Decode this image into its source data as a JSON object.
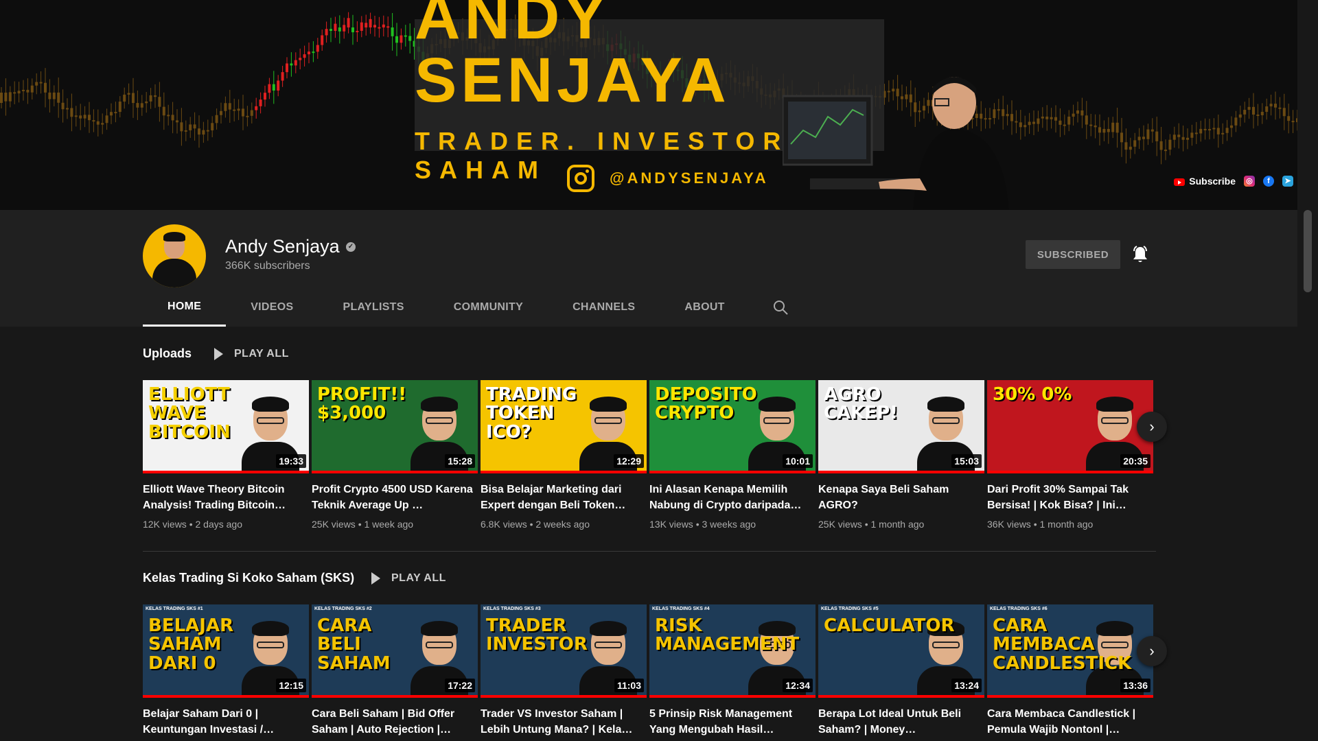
{
  "banner": {
    "title": "ANDY SENJAYA",
    "tagline": "TRADER. INVESTOR. SAHAM",
    "instagram_handle": "@ANDYSENJAYA",
    "subscribe_link": "Subscribe",
    "social_icons": [
      "instagram-icon",
      "facebook-icon",
      "telegram-icon"
    ],
    "accent_color": "#f5b800"
  },
  "channel": {
    "name": "Andy Senjaya",
    "subscribers": "366K subscribers",
    "subscribe_button": "SUBSCRIBED"
  },
  "tabs": [
    {
      "label": "HOME",
      "active": true
    },
    {
      "label": "VIDEOS",
      "active": false
    },
    {
      "label": "PLAYLISTS",
      "active": false
    },
    {
      "label": "COMMUNITY",
      "active": false
    },
    {
      "label": "CHANNELS",
      "active": false
    },
    {
      "label": "ABOUT",
      "active": false
    }
  ],
  "uploads": {
    "title": "Uploads",
    "play_all": "PLAY ALL",
    "videos": [
      {
        "title": "Elliott Wave Theory Bitcoin Analysis! Trading Bitcoin…",
        "meta": "12K views • 2 days ago",
        "duration": "19:33",
        "thumb_text": "ELLIOTT WAVE BITCOIN",
        "bg": "#f2f2f2",
        "fg": "#f5d000"
      },
      {
        "title": "Profit Crypto 4500 USD Karena Teknik Average Up …",
        "meta": "25K views • 1 week ago",
        "duration": "15:28",
        "thumb_text": "PROFIT!! $3,000",
        "bg": "#1f6b2e",
        "fg": "#ffe600"
      },
      {
        "title": "Bisa Belajar Marketing dari Expert dengan Beli Token…",
        "meta": "6.8K views • 2 weeks ago",
        "duration": "12:29",
        "thumb_text": "TRADING TOKEN ICO?",
        "bg": "#f5c400",
        "fg": "#ffffff"
      },
      {
        "title": "Ini Alasan Kenapa Memilih Nabung di Crypto daripada…",
        "meta": "13K views • 3 weeks ago",
        "duration": "10:01",
        "thumb_text": "DEPOSITO CRYPTO",
        "bg": "#1f8f3a",
        "fg": "#ffe600"
      },
      {
        "title": "Kenapa Saya Beli Saham AGRO?",
        "meta": "25K views • 1 month ago",
        "duration": "15:03",
        "thumb_text": "AGRO CAKEP!",
        "bg": "#e9e9e9",
        "fg": "#ffffff"
      },
      {
        "title": "Dari Profit 30% Sampai Tak Bersisa! | Kok Bisa? | Ini…",
        "meta": "36K views • 1 month ago",
        "duration": "20:35",
        "thumb_text": "30% 0%",
        "bg": "#c0161e",
        "fg": "#ffe600"
      }
    ]
  },
  "playlist": {
    "title": "Kelas Trading Si Koko Saham (SKS)",
    "play_all": "PLAY ALL",
    "videos": [
      {
        "title": "Belajar Saham Dari 0 | Keuntungan Investasi /…",
        "duration": "12:15",
        "thumb_text": "BELAJAR SAHAM DARI 0",
        "tag": "KELAS TRADING SKS #1"
      },
      {
        "title": "Cara Beli Saham | Bid Offer Saham | Auto Rejection |…",
        "duration": "17:22",
        "thumb_text": "CARA BELI SAHAM",
        "tag": "KELAS TRADING SKS #2"
      },
      {
        "title": "Trader VS Investor Saham | Lebih Untung Mana? | Kela…",
        "duration": "11:03",
        "thumb_text": "TRADER INVESTOR",
        "tag": "KELAS TRADING SKS #3"
      },
      {
        "title": "5 Prinsip Risk Management Yang Mengubah Hasil…",
        "duration": "12:34",
        "thumb_text": "RISK MANAGEMENT",
        "tag": "KELAS TRADING SKS #4"
      },
      {
        "title": "Berapa Lot Ideal Untuk Beli Saham? | Money…",
        "duration": "13:24",
        "thumb_text": "CALCULATOR",
        "tag": "KELAS TRADING SKS #5"
      },
      {
        "title": "Cara Membaca Candlestick | Pemula Wajib Nontonl |…",
        "duration": "13:36",
        "thumb_text": "CARA MEMBACA CANDLESTICK",
        "tag": "KELAS TRADING SKS #6"
      }
    ]
  }
}
